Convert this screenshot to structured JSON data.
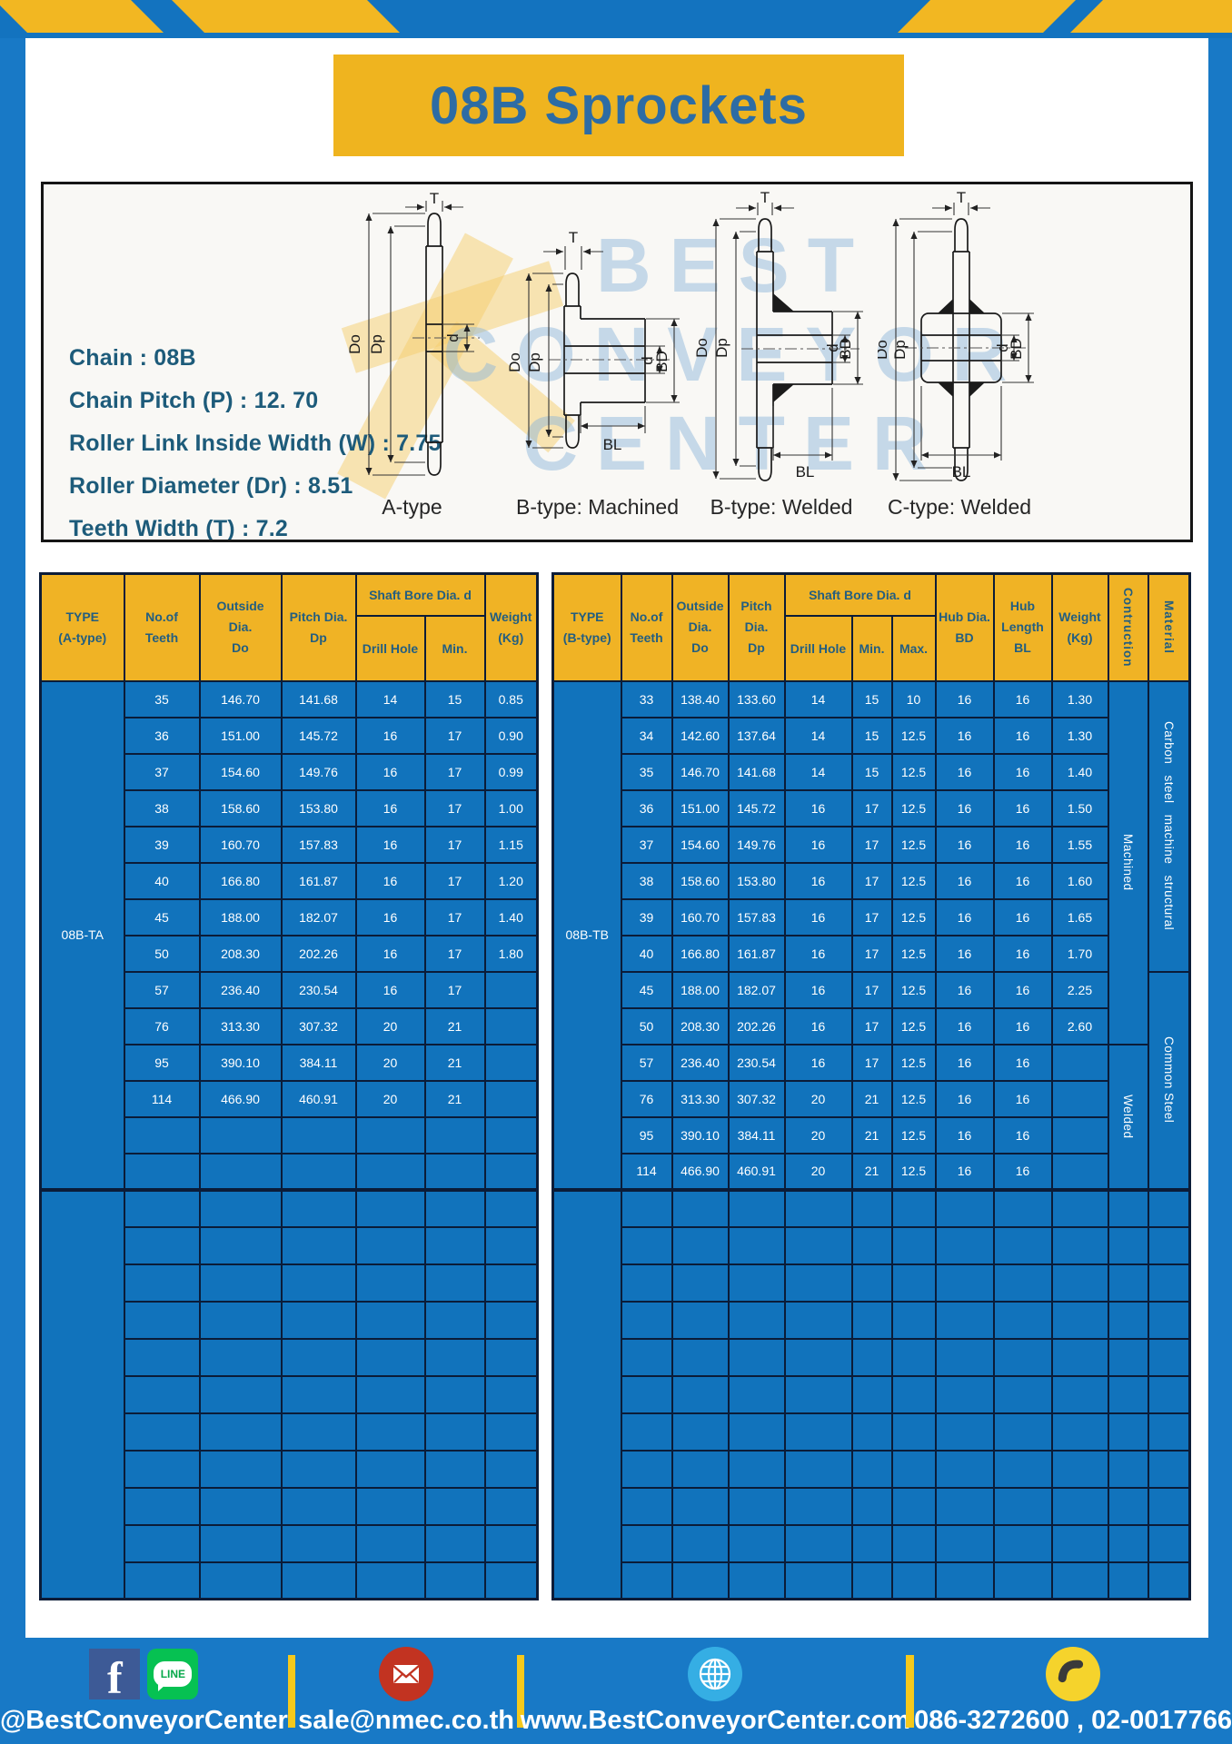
{
  "page": {
    "title": "08B Sprockets",
    "colors": {
      "page_blue": "#1879C6",
      "band_blue": "#1373BF",
      "accent_yellow": "#F0B325",
      "banner_yellow": "#EFB41F",
      "table_blue": "#1173BC",
      "border_navy": "#0B1C38",
      "header_text": "#235E80",
      "title_text": "#2D6CA4",
      "specs_text": "#1D5B7A"
    }
  },
  "specs": {
    "lines": [
      "Chain  : 08B",
      "Chain Pitch (P)  :  12. 70",
      "Roller Link Inside Width (W)  :  7.75",
      "Roller Diameter (Dr)  : 8.51",
      "Teeth Width (T)  :  7.2"
    ]
  },
  "watermark": {
    "lines": [
      "BEST",
      "CONVEYOR",
      "CENTER"
    ]
  },
  "diagrams": {
    "labels": {
      "T": "T",
      "Do": "Do",
      "Dp": "Dp",
      "d": "d",
      "BD": "BD",
      "BL": "BL"
    },
    "captions": [
      "A-type",
      "B-type: Machined",
      "B-type: Welded",
      "C-type: Welded"
    ]
  },
  "headers": {
    "type_a": [
      "TYPE",
      "(A-type)"
    ],
    "type_b": [
      "TYPE",
      "(B-type)"
    ],
    "teeth": [
      "No.of",
      "Teeth"
    ],
    "outside": [
      "Outside",
      "Dia.",
      "Do"
    ],
    "pitch": [
      "Pitch Dia.",
      "Dp"
    ],
    "shaft_bore": "Shaft Bore Dia. d",
    "drill_hole": "Drill Hole",
    "min": "Min.",
    "max": "Max.",
    "hub_dia": [
      "Hub Dia.",
      "BD"
    ],
    "hub_len": [
      "Hub",
      "Length",
      "BL"
    ],
    "weight": [
      "Weight",
      "(Kg)"
    ],
    "construction": "Contruction",
    "material": "Material"
  },
  "table_a": {
    "group1_label": "08B-TA",
    "rows": [
      [
        "35",
        "146.70",
        "141.68",
        "14",
        "15",
        "0.85"
      ],
      [
        "36",
        "151.00",
        "145.72",
        "16",
        "17",
        "0.90"
      ],
      [
        "37",
        "154.60",
        "149.76",
        "16",
        "17",
        "0.99"
      ],
      [
        "38",
        "158.60",
        "153.80",
        "16",
        "17",
        "1.00"
      ],
      [
        "39",
        "160.70",
        "157.83",
        "16",
        "17",
        "1.15"
      ],
      [
        "40",
        "166.80",
        "161.87",
        "16",
        "17",
        "1.20"
      ],
      [
        "45",
        "188.00",
        "182.07",
        "16",
        "17",
        "1.40"
      ],
      [
        "50",
        "208.30",
        "202.26",
        "16",
        "17",
        "1.80"
      ],
      [
        "57",
        "236.40",
        "230.54",
        "16",
        "17",
        ""
      ],
      [
        "76",
        "313.30",
        "307.32",
        "20",
        "21",
        ""
      ],
      [
        "95",
        "390.10",
        "384.11",
        "20",
        "21",
        ""
      ],
      [
        "114",
        "466.90",
        "460.91",
        "20",
        "21",
        ""
      ]
    ],
    "group1_total_rows": 14,
    "group2_empty_rows": 11
  },
  "table_b": {
    "group1_label": "08B-TB",
    "rows": [
      [
        "33",
        "138.40",
        "133.60",
        "14",
        "15",
        "10",
        "16",
        "16",
        "1.30"
      ],
      [
        "34",
        "142.60",
        "137.64",
        "14",
        "15",
        "12.5",
        "16",
        "16",
        "1.30"
      ],
      [
        "35",
        "146.70",
        "141.68",
        "14",
        "15",
        "12.5",
        "16",
        "16",
        "1.40"
      ],
      [
        "36",
        "151.00",
        "145.72",
        "16",
        "17",
        "12.5",
        "16",
        "16",
        "1.50"
      ],
      [
        "37",
        "154.60",
        "149.76",
        "16",
        "17",
        "12.5",
        "16",
        "16",
        "1.55"
      ],
      [
        "38",
        "158.60",
        "153.80",
        "16",
        "17",
        "12.5",
        "16",
        "16",
        "1.60"
      ],
      [
        "39",
        "160.70",
        "157.83",
        "16",
        "17",
        "12.5",
        "16",
        "16",
        "1.65"
      ],
      [
        "40",
        "166.80",
        "161.87",
        "16",
        "17",
        "12.5",
        "16",
        "16",
        "1.70"
      ],
      [
        "45",
        "188.00",
        "182.07",
        "16",
        "17",
        "12.5",
        "16",
        "16",
        "2.25"
      ],
      [
        "50",
        "208.30",
        "202.26",
        "16",
        "17",
        "12.5",
        "16",
        "16",
        "2.60"
      ],
      [
        "57",
        "236.40",
        "230.54",
        "16",
        "17",
        "12.5",
        "16",
        "16",
        ""
      ],
      [
        "76",
        "313.30",
        "307.32",
        "20",
        "21",
        "12.5",
        "16",
        "16",
        ""
      ],
      [
        "95",
        "390.10",
        "384.11",
        "20",
        "21",
        "12.5",
        "16",
        "16",
        ""
      ],
      [
        "114",
        "466.90",
        "460.91",
        "20",
        "21",
        "12.5",
        "16",
        "16",
        ""
      ]
    ],
    "group1_total_rows": 14,
    "group2_empty_rows": 11,
    "construction_spans": [
      {
        "label": "Machined",
        "rows": 10,
        "at": 0
      },
      {
        "label": "Welded",
        "rows": 4,
        "at": 10
      }
    ],
    "material_spans": [
      {
        "label": "Carbon steel machine structural",
        "rows": 8,
        "at": 0
      },
      {
        "label": "Common Steel",
        "rows": 6,
        "at": 8
      }
    ]
  },
  "footer": {
    "facebook_letter": "f",
    "line_badge": "LINE",
    "items": [
      {
        "icons": [
          "facebook-icon",
          "line-icon"
        ],
        "text": "@BestConveyorCenter"
      },
      {
        "icons": [
          "email-icon"
        ],
        "text": "sale@nmec.co.th"
      },
      {
        "icons": [
          "globe-icon"
        ],
        "text": "www.BestConveyorCenter.com"
      },
      {
        "icons": [
          "phone-icon"
        ],
        "text": "086-3272600 , 02-0017766"
      }
    ]
  }
}
